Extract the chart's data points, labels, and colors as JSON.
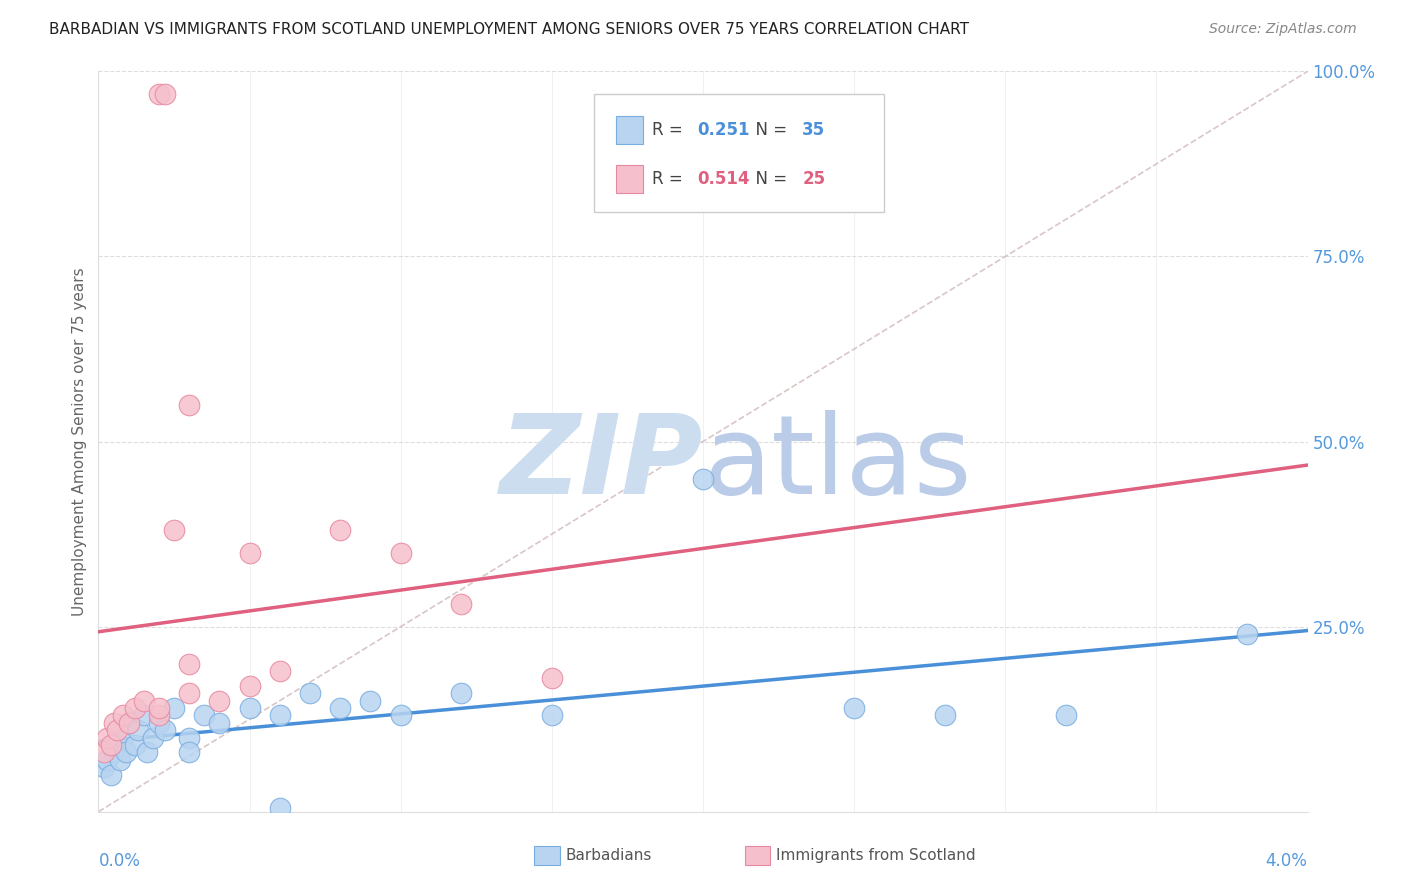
{
  "title": "BARBADIAN VS IMMIGRANTS FROM SCOTLAND UNEMPLOYMENT AMONG SENIORS OVER 75 YEARS CORRELATION CHART",
  "source": "Source: ZipAtlas.com",
  "ylabel": "Unemployment Among Seniors over 75 years",
  "xlim": [
    0.0,
    0.04
  ],
  "ylim": [
    0.0,
    1.0
  ],
  "barbadians_x": [
    0.0002,
    0.0003,
    0.0004,
    0.0005,
    0.0006,
    0.0007,
    0.0008,
    0.0009,
    0.001,
    0.0012,
    0.0013,
    0.0015,
    0.0016,
    0.0018,
    0.002,
    0.0022,
    0.0025,
    0.003,
    0.003,
    0.0035,
    0.004,
    0.005,
    0.006,
    0.007,
    0.008,
    0.009,
    0.01,
    0.012,
    0.015,
    0.02,
    0.025,
    0.028,
    0.032,
    0.038,
    0.006
  ],
  "barbadians_y": [
    0.06,
    0.07,
    0.05,
    0.08,
    0.09,
    0.07,
    0.1,
    0.08,
    0.12,
    0.09,
    0.11,
    0.13,
    0.08,
    0.1,
    0.12,
    0.11,
    0.14,
    0.1,
    0.08,
    0.13,
    0.12,
    0.14,
    0.13,
    0.16,
    0.14,
    0.15,
    0.13,
    0.16,
    0.13,
    0.45,
    0.14,
    0.13,
    0.13,
    0.24,
    0.005
  ],
  "scotland_x": [
    0.0002,
    0.0003,
    0.0004,
    0.0005,
    0.0006,
    0.0008,
    0.001,
    0.0012,
    0.0015,
    0.002,
    0.0022,
    0.003,
    0.004,
    0.005,
    0.006,
    0.008,
    0.01,
    0.012,
    0.015,
    0.002,
    0.003,
    0.0025,
    0.002,
    0.003,
    0.005
  ],
  "scotland_y": [
    0.08,
    0.1,
    0.09,
    0.12,
    0.11,
    0.13,
    0.12,
    0.14,
    0.15,
    0.97,
    0.97,
    0.2,
    0.15,
    0.35,
    0.19,
    0.38,
    0.35,
    0.28,
    0.18,
    0.13,
    0.55,
    0.38,
    0.14,
    0.16,
    0.17
  ],
  "R_barbadians": 0.251,
  "N_barbadians": 35,
  "R_scotland": 0.514,
  "N_scotland": 25,
  "color_barbadians_fill": "#b8d4f0",
  "color_barbadians_edge": "#7aade0",
  "color_scotland_fill": "#f5c0cc",
  "color_scotland_edge": "#e888a0",
  "color_line_barbadians": "#4a90d9",
  "color_line_scotland": "#e06080",
  "color_ref_line": "#d0b8b8",
  "right_axis_color": "#5599dd",
  "title_color": "#222222",
  "source_color": "#888888",
  "grid_color": "#dddddd",
  "watermark_zip_color": "#ccddf0",
  "watermark_atlas_color": "#bbcce8"
}
